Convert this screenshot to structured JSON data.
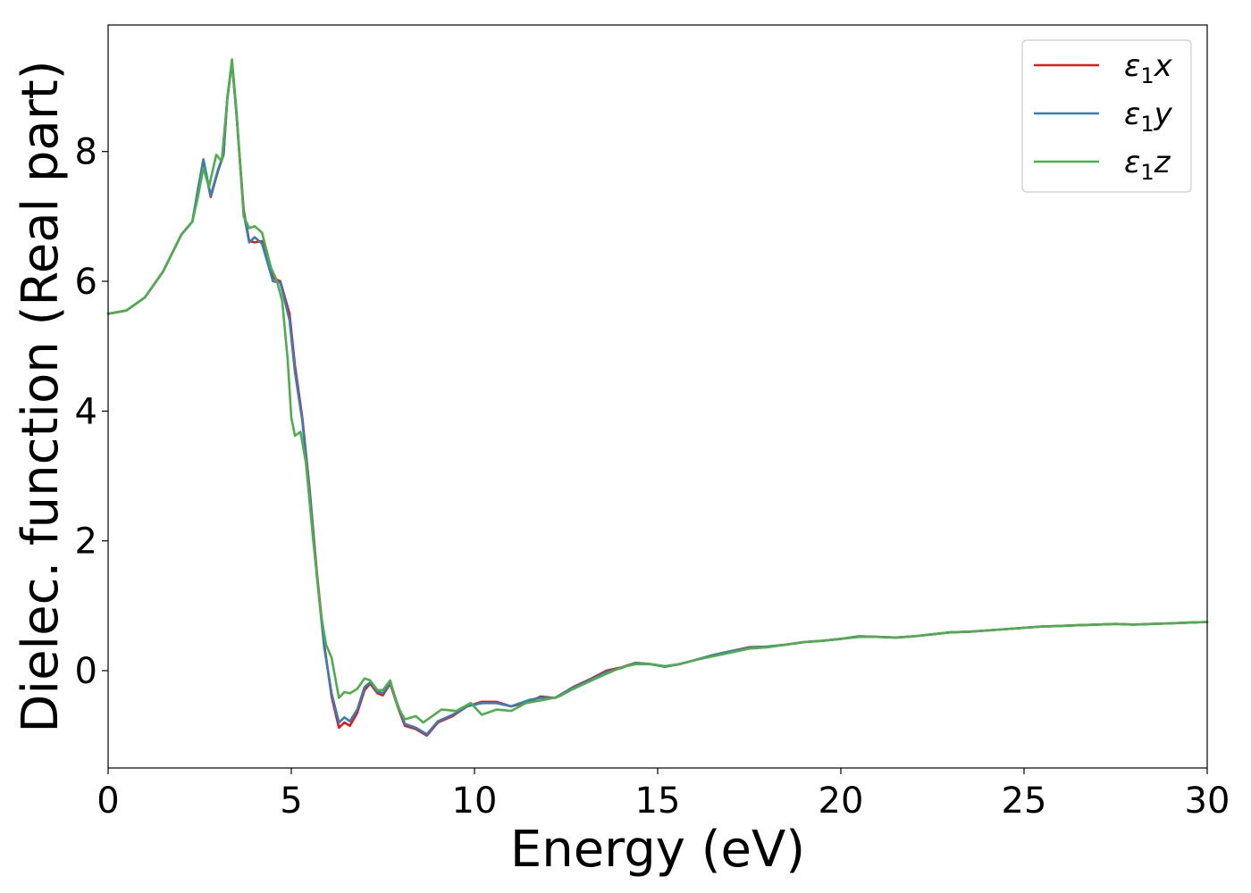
{
  "chart_data": {
    "type": "line",
    "xlabel": "Energy (eV)",
    "ylabel": "Dielec. function (Real part)",
    "xlim": [
      0,
      30
    ],
    "ylim": [
      -1.5,
      9.95
    ],
    "x_ticks": [
      "0",
      "5",
      "10",
      "15",
      "20",
      "25",
      "30"
    ],
    "y_ticks": [
      "0",
      "2",
      "4",
      "6",
      "8"
    ],
    "grid": false,
    "legend_position": "top-right",
    "series": [
      {
        "name": "ε₁x",
        "legend": {
          "base": "ε",
          "sub": "1",
          "var": "x"
        },
        "color": "#e41a1c",
        "points": [
          [
            0,
            5.5
          ],
          [
            0.5,
            5.55
          ],
          [
            1.0,
            5.75
          ],
          [
            1.5,
            6.15
          ],
          [
            2.0,
            6.72
          ],
          [
            2.3,
            6.92
          ],
          [
            2.45,
            7.4
          ],
          [
            2.6,
            7.85
          ],
          [
            2.8,
            7.3
          ],
          [
            3.0,
            7.7
          ],
          [
            3.15,
            7.95
          ],
          [
            3.25,
            8.8
          ],
          [
            3.38,
            9.38
          ],
          [
            3.5,
            8.6
          ],
          [
            3.7,
            7.1
          ],
          [
            3.85,
            6.62
          ],
          [
            4.0,
            6.6
          ],
          [
            4.2,
            6.62
          ],
          [
            4.5,
            6.05
          ],
          [
            4.7,
            6.0
          ],
          [
            4.95,
            5.5
          ],
          [
            5.1,
            4.7
          ],
          [
            5.3,
            3.9
          ],
          [
            5.5,
            2.8
          ],
          [
            5.7,
            1.5
          ],
          [
            5.9,
            0.4
          ],
          [
            6.1,
            -0.4
          ],
          [
            6.3,
            -0.88
          ],
          [
            6.45,
            -0.8
          ],
          [
            6.6,
            -0.85
          ],
          [
            6.8,
            -0.65
          ],
          [
            7.0,
            -0.3
          ],
          [
            7.15,
            -0.2
          ],
          [
            7.35,
            -0.35
          ],
          [
            7.5,
            -0.38
          ],
          [
            7.7,
            -0.2
          ],
          [
            7.9,
            -0.55
          ],
          [
            8.1,
            -0.85
          ],
          [
            8.4,
            -0.9
          ],
          [
            8.7,
            -1.0
          ],
          [
            9.0,
            -0.8
          ],
          [
            9.4,
            -0.7
          ],
          [
            9.8,
            -0.55
          ],
          [
            10.2,
            -0.48
          ],
          [
            10.6,
            -0.48
          ],
          [
            11.0,
            -0.55
          ],
          [
            11.5,
            -0.48
          ],
          [
            11.8,
            -0.4
          ],
          [
            12.2,
            -0.42
          ],
          [
            12.7,
            -0.25
          ],
          [
            13.2,
            -0.12
          ],
          [
            13.6,
            0.0
          ],
          [
            14.0,
            0.05
          ],
          [
            14.4,
            0.12
          ],
          [
            14.8,
            0.1
          ],
          [
            15.2,
            0.06
          ],
          [
            15.6,
            0.1
          ],
          [
            16.0,
            0.16
          ],
          [
            16.5,
            0.24
          ],
          [
            17.0,
            0.3
          ],
          [
            17.5,
            0.36
          ],
          [
            18.0,
            0.37
          ],
          [
            18.5,
            0.4
          ],
          [
            19.0,
            0.44
          ],
          [
            19.5,
            0.46
          ],
          [
            20.0,
            0.49
          ],
          [
            20.5,
            0.53
          ],
          [
            21.0,
            0.52
          ],
          [
            21.5,
            0.51
          ],
          [
            22.0,
            0.53
          ],
          [
            22.5,
            0.56
          ],
          [
            23.0,
            0.59
          ],
          [
            23.5,
            0.6
          ],
          [
            24.0,
            0.62
          ],
          [
            24.5,
            0.64
          ],
          [
            25.0,
            0.66
          ],
          [
            25.5,
            0.68
          ],
          [
            26.0,
            0.69
          ],
          [
            26.5,
            0.7
          ],
          [
            27.0,
            0.71
          ],
          [
            27.5,
            0.72
          ],
          [
            28.0,
            0.71
          ],
          [
            28.5,
            0.72
          ],
          [
            29.0,
            0.73
          ],
          [
            29.5,
            0.74
          ],
          [
            30.0,
            0.75
          ]
        ]
      },
      {
        "name": "ε₁y",
        "legend": {
          "base": "ε",
          "sub": "1",
          "var": "y"
        },
        "color": "#377eb8",
        "points": [
          [
            0,
            5.5
          ],
          [
            0.5,
            5.55
          ],
          [
            1.0,
            5.75
          ],
          [
            1.5,
            6.15
          ],
          [
            2.0,
            6.72
          ],
          [
            2.3,
            6.92
          ],
          [
            2.45,
            7.42
          ],
          [
            2.6,
            7.88
          ],
          [
            2.8,
            7.32
          ],
          [
            3.0,
            7.72
          ],
          [
            3.15,
            7.96
          ],
          [
            3.25,
            8.82
          ],
          [
            3.38,
            9.38
          ],
          [
            3.5,
            8.6
          ],
          [
            3.7,
            7.05
          ],
          [
            3.85,
            6.6
          ],
          [
            4.0,
            6.68
          ],
          [
            4.2,
            6.58
          ],
          [
            4.5,
            6.0
          ],
          [
            4.7,
            5.98
          ],
          [
            4.95,
            5.4
          ],
          [
            5.1,
            4.6
          ],
          [
            5.3,
            3.85
          ],
          [
            5.5,
            2.75
          ],
          [
            5.7,
            1.45
          ],
          [
            5.9,
            0.35
          ],
          [
            6.1,
            -0.35
          ],
          [
            6.3,
            -0.8
          ],
          [
            6.45,
            -0.72
          ],
          [
            6.6,
            -0.78
          ],
          [
            6.8,
            -0.6
          ],
          [
            7.0,
            -0.25
          ],
          [
            7.15,
            -0.18
          ],
          [
            7.35,
            -0.32
          ],
          [
            7.5,
            -0.35
          ],
          [
            7.7,
            -0.18
          ],
          [
            7.9,
            -0.52
          ],
          [
            8.1,
            -0.82
          ],
          [
            8.4,
            -0.88
          ],
          [
            8.7,
            -0.98
          ],
          [
            9.0,
            -0.78
          ],
          [
            9.4,
            -0.68
          ],
          [
            9.8,
            -0.55
          ],
          [
            10.2,
            -0.5
          ],
          [
            10.6,
            -0.5
          ],
          [
            11.0,
            -0.55
          ],
          [
            11.5,
            -0.45
          ],
          [
            11.8,
            -0.42
          ],
          [
            12.2,
            -0.42
          ],
          [
            12.7,
            -0.26
          ],
          [
            13.2,
            -0.13
          ],
          [
            13.6,
            -0.02
          ],
          [
            14.0,
            0.04
          ],
          [
            14.4,
            0.12
          ],
          [
            14.8,
            0.1
          ],
          [
            15.2,
            0.06
          ],
          [
            15.6,
            0.1
          ],
          [
            16.0,
            0.16
          ],
          [
            16.5,
            0.24
          ],
          [
            17.0,
            0.3
          ],
          [
            17.5,
            0.35
          ],
          [
            18.0,
            0.37
          ],
          [
            18.5,
            0.4
          ],
          [
            19.0,
            0.44
          ],
          [
            19.5,
            0.46
          ],
          [
            20.0,
            0.49
          ],
          [
            20.5,
            0.53
          ],
          [
            21.0,
            0.52
          ],
          [
            21.5,
            0.51
          ],
          [
            22.0,
            0.53
          ],
          [
            22.5,
            0.56
          ],
          [
            23.0,
            0.59
          ],
          [
            23.5,
            0.6
          ],
          [
            24.0,
            0.62
          ],
          [
            24.5,
            0.64
          ],
          [
            25.0,
            0.66
          ],
          [
            25.5,
            0.68
          ],
          [
            26.0,
            0.69
          ],
          [
            26.5,
            0.7
          ],
          [
            27.0,
            0.71
          ],
          [
            27.5,
            0.72
          ],
          [
            28.0,
            0.71
          ],
          [
            28.5,
            0.72
          ],
          [
            29.0,
            0.73
          ],
          [
            29.5,
            0.74
          ],
          [
            30.0,
            0.75
          ]
        ]
      },
      {
        "name": "ε₁z",
        "legend": {
          "base": "ε",
          "sub": "1",
          "var": "z"
        },
        "color": "#4daf4a",
        "points": [
          [
            0,
            5.5
          ],
          [
            0.5,
            5.55
          ],
          [
            1.0,
            5.75
          ],
          [
            1.5,
            6.15
          ],
          [
            2.0,
            6.72
          ],
          [
            2.3,
            6.92
          ],
          [
            2.45,
            7.3
          ],
          [
            2.6,
            7.75
          ],
          [
            2.75,
            7.45
          ],
          [
            2.95,
            7.95
          ],
          [
            3.1,
            7.85
          ],
          [
            3.25,
            8.8
          ],
          [
            3.38,
            9.42
          ],
          [
            3.5,
            8.65
          ],
          [
            3.7,
            7.0
          ],
          [
            3.85,
            6.82
          ],
          [
            4.0,
            6.85
          ],
          [
            4.2,
            6.75
          ],
          [
            4.45,
            6.2
          ],
          [
            4.6,
            6.02
          ],
          [
            4.75,
            5.7
          ],
          [
            4.9,
            4.8
          ],
          [
            5.0,
            3.9
          ],
          [
            5.1,
            3.62
          ],
          [
            5.25,
            3.68
          ],
          [
            5.4,
            3.2
          ],
          [
            5.6,
            2.0
          ],
          [
            5.8,
            0.9
          ],
          [
            5.95,
            0.4
          ],
          [
            6.1,
            0.2
          ],
          [
            6.3,
            -0.42
          ],
          [
            6.45,
            -0.33
          ],
          [
            6.6,
            -0.35
          ],
          [
            6.8,
            -0.28
          ],
          [
            7.0,
            -0.12
          ],
          [
            7.15,
            -0.15
          ],
          [
            7.35,
            -0.3
          ],
          [
            7.5,
            -0.3
          ],
          [
            7.7,
            -0.15
          ],
          [
            7.9,
            -0.55
          ],
          [
            8.1,
            -0.75
          ],
          [
            8.4,
            -0.7
          ],
          [
            8.6,
            -0.8
          ],
          [
            8.8,
            -0.72
          ],
          [
            9.1,
            -0.6
          ],
          [
            9.5,
            -0.62
          ],
          [
            9.9,
            -0.5
          ],
          [
            10.2,
            -0.68
          ],
          [
            10.6,
            -0.6
          ],
          [
            11.0,
            -0.62
          ],
          [
            11.4,
            -0.5
          ],
          [
            11.9,
            -0.45
          ],
          [
            12.3,
            -0.4
          ],
          [
            12.7,
            -0.28
          ],
          [
            13.2,
            -0.15
          ],
          [
            13.6,
            -0.05
          ],
          [
            14.0,
            0.05
          ],
          [
            14.4,
            0.1
          ],
          [
            14.8,
            0.1
          ],
          [
            15.2,
            0.07
          ],
          [
            15.6,
            0.1
          ],
          [
            16.0,
            0.16
          ],
          [
            16.5,
            0.22
          ],
          [
            17.0,
            0.28
          ],
          [
            17.5,
            0.34
          ],
          [
            18.0,
            0.36
          ],
          [
            18.5,
            0.4
          ],
          [
            19.0,
            0.44
          ],
          [
            19.5,
            0.46
          ],
          [
            20.0,
            0.49
          ],
          [
            20.5,
            0.52
          ],
          [
            21.0,
            0.52
          ],
          [
            21.5,
            0.51
          ],
          [
            22.0,
            0.53
          ],
          [
            22.5,
            0.56
          ],
          [
            23.0,
            0.59
          ],
          [
            23.5,
            0.6
          ],
          [
            24.0,
            0.62
          ],
          [
            24.5,
            0.64
          ],
          [
            25.0,
            0.66
          ],
          [
            25.5,
            0.68
          ],
          [
            26.0,
            0.69
          ],
          [
            26.5,
            0.7
          ],
          [
            27.0,
            0.71
          ],
          [
            27.5,
            0.72
          ],
          [
            28.0,
            0.71
          ],
          [
            28.5,
            0.72
          ],
          [
            29.0,
            0.73
          ],
          [
            29.5,
            0.74
          ],
          [
            30.0,
            0.75
          ]
        ]
      }
    ]
  }
}
